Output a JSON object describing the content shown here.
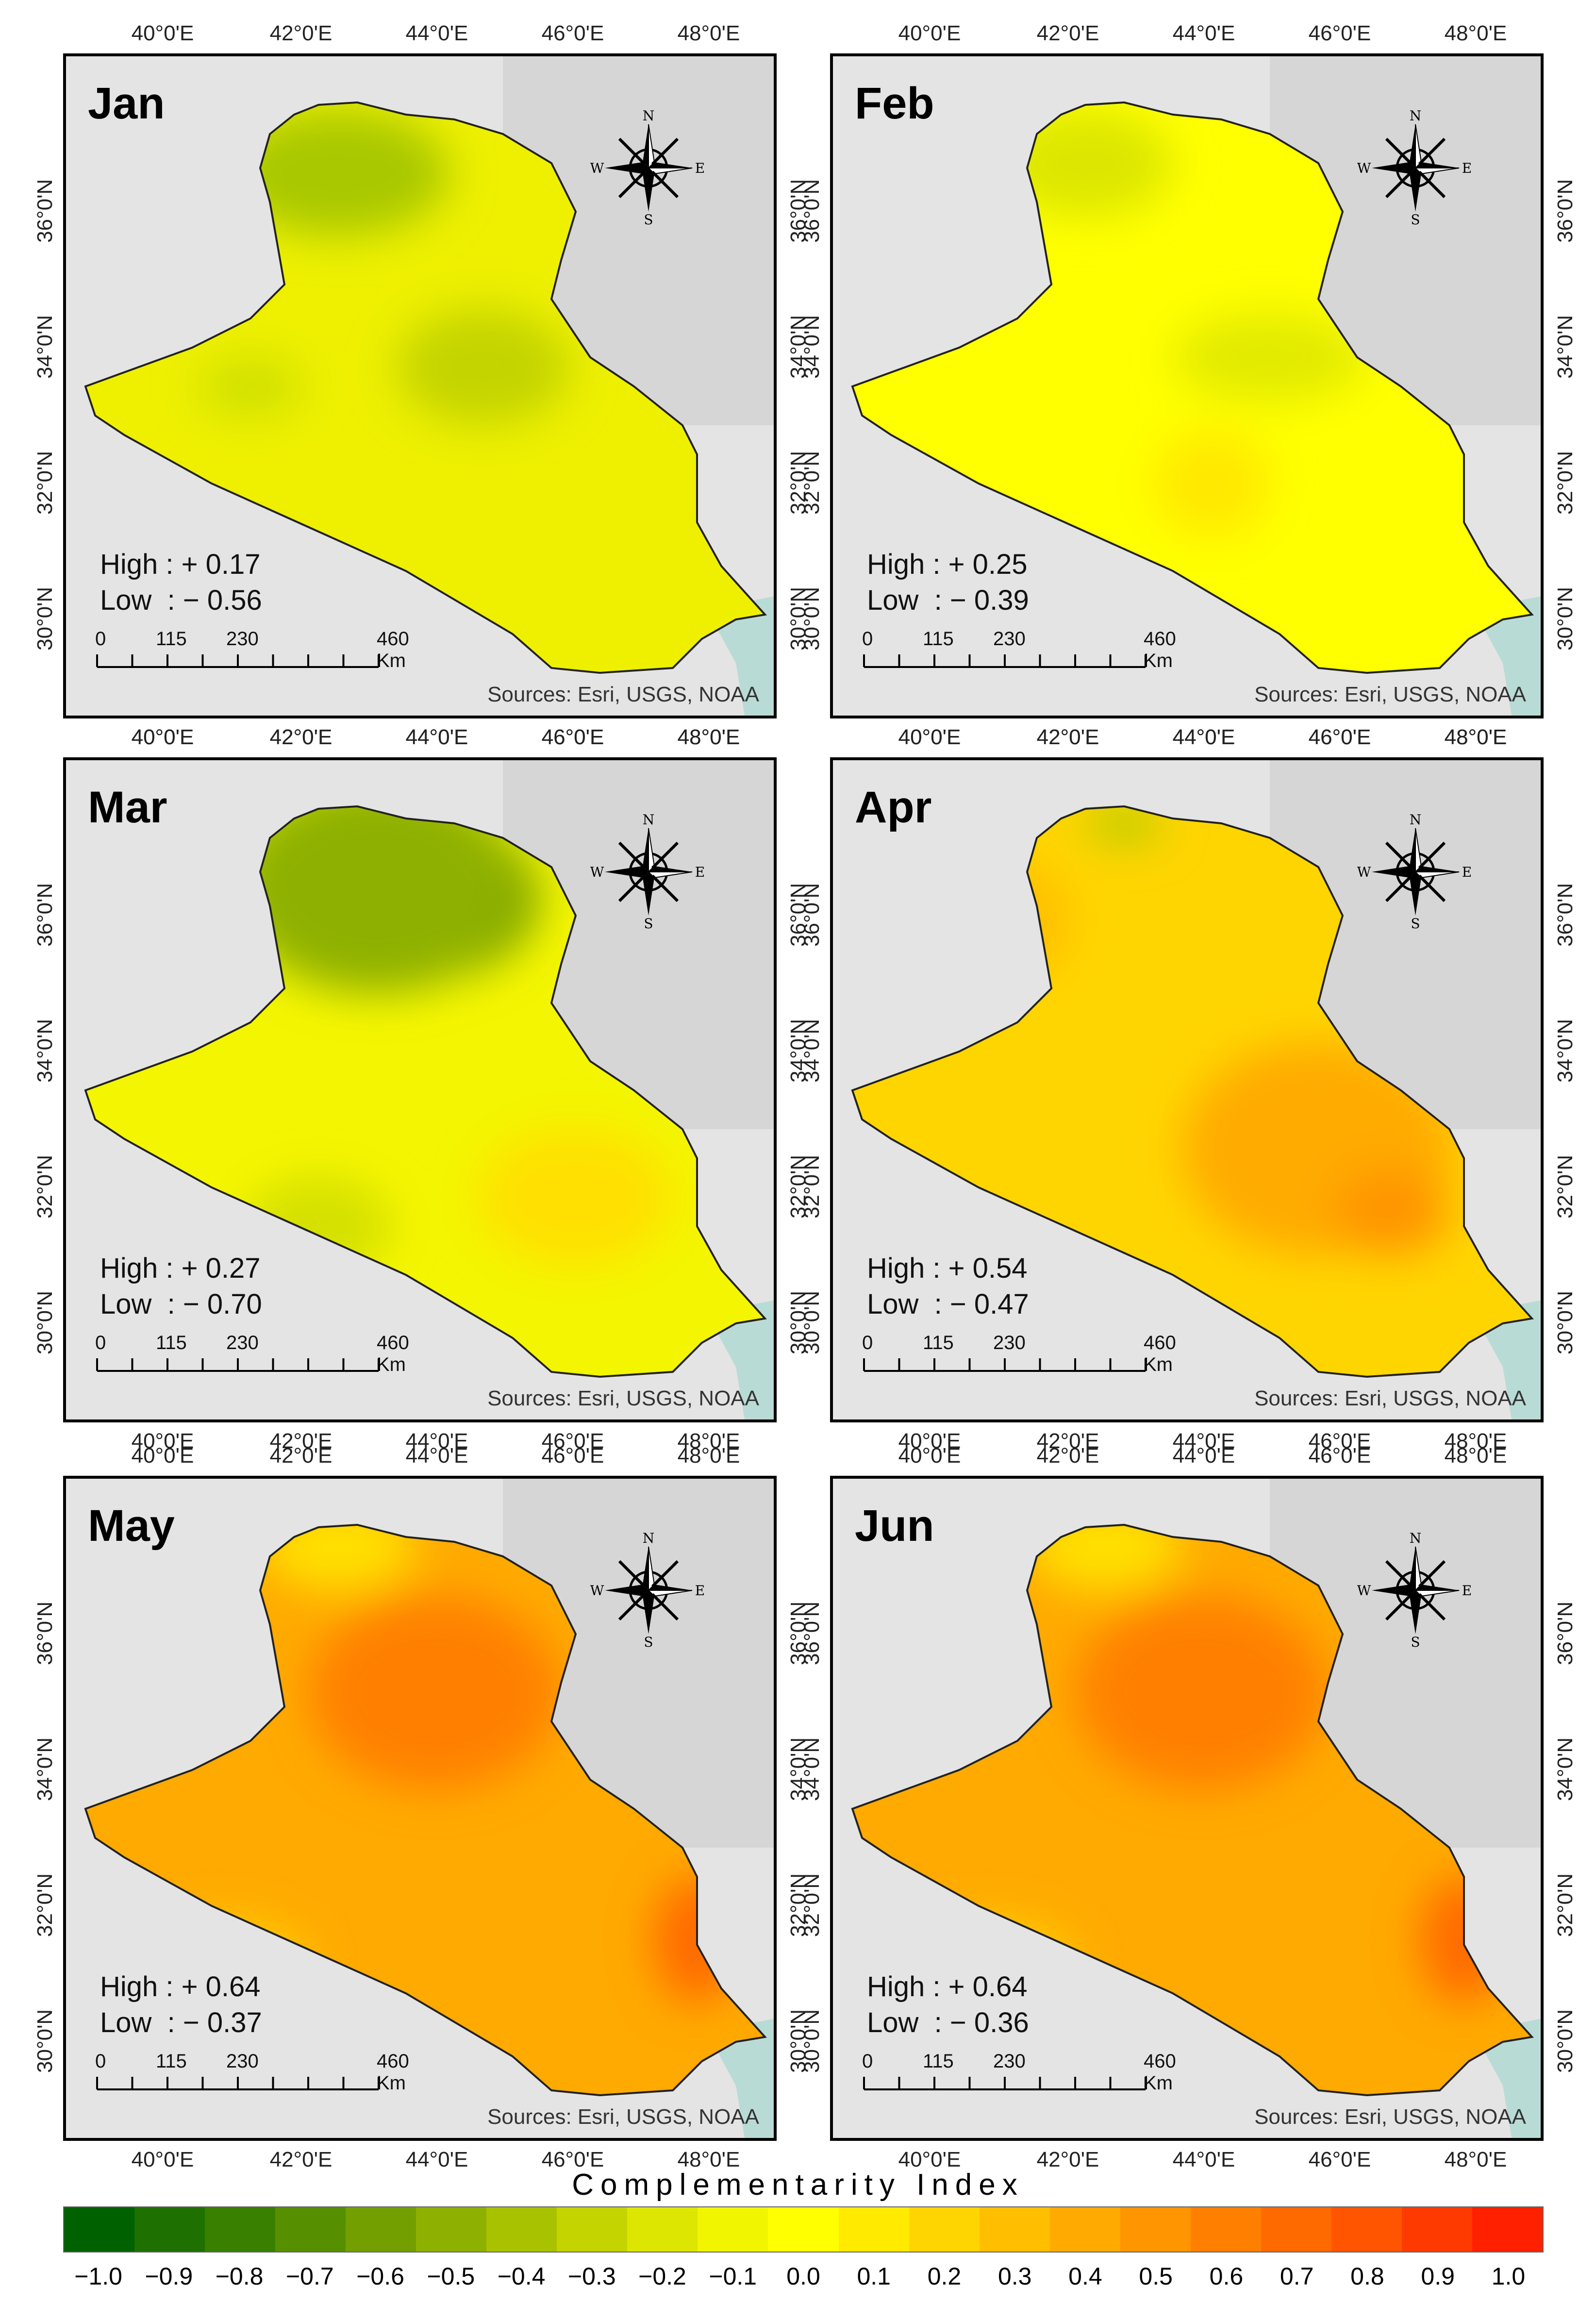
{
  "x_ticks": [
    "40°0'E",
    "42°0'E",
    "44°0'E",
    "46°0'E",
    "48°0'E"
  ],
  "y_ticks": [
    "30°0'N",
    "32°0'N",
    "34°0'N",
    "36°0'N"
  ],
  "sources": "Sources: Esri, USGS, NOAA",
  "scale": {
    "labels": [
      "0",
      "115",
      "230",
      "460 Km"
    ]
  },
  "compass": {
    "n": "N",
    "s": "S",
    "e": "E",
    "w": "W"
  },
  "panels": [
    {
      "month": "Jan",
      "high": "High : + 0.17",
      "low": "Low  : − 0.56",
      "tone": "yellow-green"
    },
    {
      "month": "Feb",
      "high": "High : + 0.25",
      "low": "Low  : − 0.39",
      "tone": "yellow"
    },
    {
      "month": "Mar",
      "high": "High : + 0.27",
      "low": "Low  : − 0.70",
      "tone": "green-yellow"
    },
    {
      "month": "Apr",
      "high": "High : + 0.54",
      "low": "Low  : − 0.47",
      "tone": "orange"
    },
    {
      "month": "May",
      "high": "High : + 0.64",
      "low": "Low  : − 0.37",
      "tone": "orange-red"
    },
    {
      "month": "Jun",
      "high": "High : + 0.64",
      "low": "Low  : − 0.36",
      "tone": "orange-red"
    }
  ],
  "legend": {
    "title": "Complementarity Index",
    "ticks": [
      "−1.0",
      "−0.9",
      "−0.8",
      "−0.7",
      "−0.6",
      "−0.5",
      "−0.4",
      "−0.3",
      "−0.2",
      "−0.1",
      "0.0",
      "0.1",
      "0.2",
      "0.3",
      "0.4",
      "0.5",
      "0.6",
      "0.7",
      "0.8",
      "0.9",
      "1.0"
    ],
    "colors": [
      "#006100",
      "#1e7000",
      "#3a8000",
      "#568f00",
      "#73a000",
      "#8eb000",
      "#a9c200",
      "#c4d400",
      "#dde600",
      "#f2f500",
      "#ffff00",
      "#ffea00",
      "#ffd500",
      "#ffbf00",
      "#ffaa00",
      "#ff9500",
      "#ff8000",
      "#ff6a00",
      "#ff5500",
      "#ff3a00",
      "#ff2000"
    ]
  }
}
